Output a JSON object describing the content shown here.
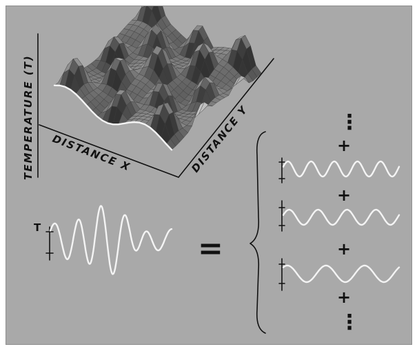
{
  "labels": {
    "temperature_axis": "TEMPERATURE (T)",
    "distance_x": "DISTANCE X",
    "distance_y": "DISTANCE Y",
    "signal_axis": "T"
  },
  "symbols": {
    "equals": "=",
    "plus": "+",
    "ellipsis": "⋮"
  },
  "colors": {
    "background": "#a9a9a9",
    "ink": "#111111",
    "wave": "#f4f4f4",
    "surface": "#666666"
  }
}
